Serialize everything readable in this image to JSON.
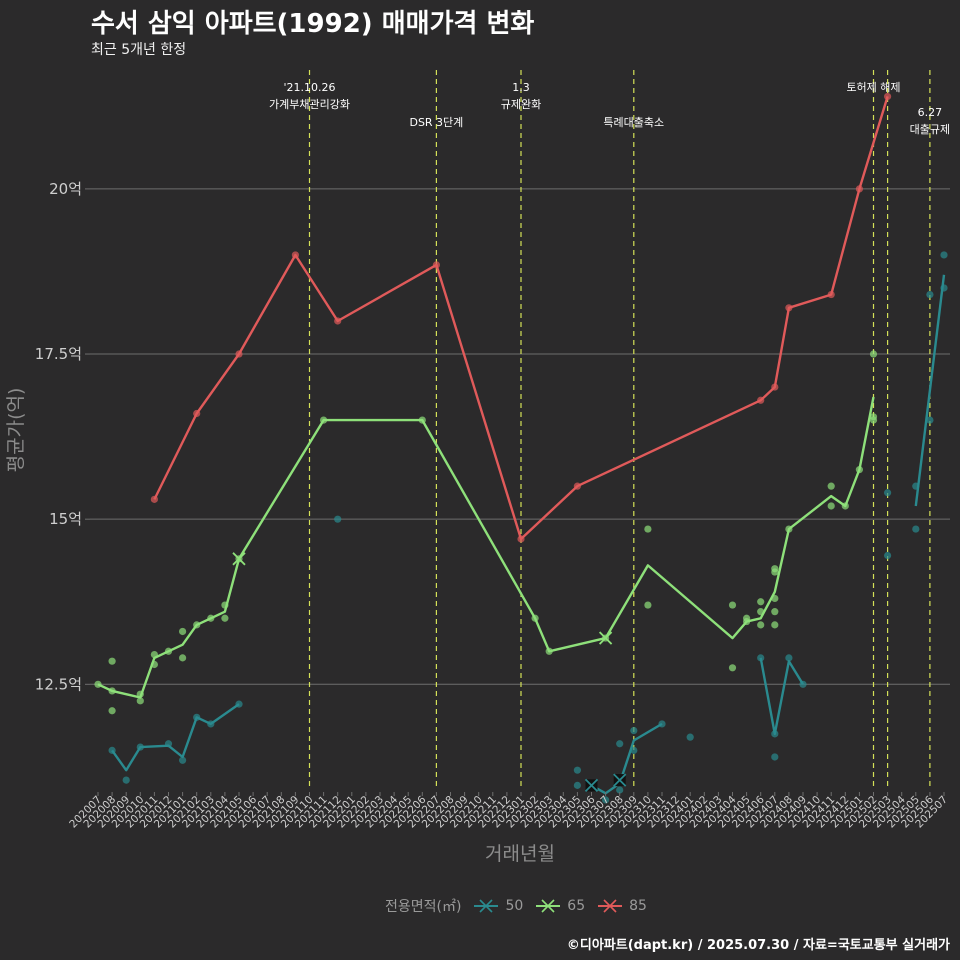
{
  "title": "수서 삼익 아파트(1992) 매매가격 변화",
  "subtitle": "최근 5개년 한정",
  "caption": "©디아파트(dapt.kr) / 2025.07.30 / 자료=국토교통부 실거래가",
  "legend_title": "전용면적(㎡)",
  "colors": {
    "background": "#2b2a2b",
    "grid": "#6e6e6e",
    "event_line": "#d4e157",
    "event_text": "#ffffff",
    "axis_text": "#cfcfcf",
    "axis_title": "#8c8c8c",
    "s50": "#2a8a8f",
    "s65": "#8ee07a",
    "s85": "#e05a5a"
  },
  "chart_data": {
    "type": "line",
    "title": "수서 삼익 아파트(1992) 매매가격 변화",
    "subtitle": "최근 5개년 한정",
    "xlabel": "거래년월",
    "ylabel": "평균가(억)",
    "ylim": [
      10.9,
      21.8
    ],
    "yticks": [
      12.5,
      15,
      17.5,
      20
    ],
    "ytick_labels": [
      "12.5억",
      "15억",
      "17.5억",
      "20억"
    ],
    "grid": "horizontal",
    "legend_position": "bottom",
    "x_labels": [
      "202007",
      "202008",
      "202009",
      "202010",
      "202011",
      "202012",
      "202101",
      "202102",
      "202103",
      "202104",
      "202105",
      "202106",
      "202107",
      "202108",
      "202109",
      "202110",
      "202111",
      "202112",
      "202201",
      "202202",
      "202203",
      "202204",
      "202205",
      "202206",
      "202207",
      "202208",
      "202209",
      "202210",
      "202211",
      "202212",
      "202301",
      "202302",
      "202303",
      "202304",
      "202305",
      "202306",
      "202307",
      "202308",
      "202309",
      "202310",
      "202311",
      "202312",
      "202401",
      "202402",
      "202403",
      "202404",
      "202405",
      "202406",
      "202407",
      "202408",
      "202409",
      "202410",
      "202411",
      "202412",
      "202501",
      "202502",
      "202503",
      "202504",
      "202505",
      "202506",
      "202507"
    ],
    "events": [
      {
        "x": "202110",
        "label": "'21.10.26\n가계부채관리강화",
        "row": 0
      },
      {
        "x": "202207",
        "label": "DSR 3단계",
        "row": 1
      },
      {
        "x": "202301",
        "label": "1.3\n규제완화",
        "row": 0
      },
      {
        "x": "202309",
        "label": "특례대출축소",
        "row": 1
      },
      {
        "x": "202502",
        "label": "토허제 해제",
        "row": 0
      },
      {
        "x": "202503",
        "label": "",
        "row": 0
      },
      {
        "x": "202506",
        "label": "6.27\n대출규제",
        "row": 2
      }
    ],
    "series": [
      {
        "name": "50",
        "line": [
          [
            "202008",
            11.5
          ],
          [
            "202009",
            11.2
          ],
          [
            "202010",
            11.55
          ],
          [
            "202012",
            11.57
          ],
          [
            "202101",
            11.4
          ],
          [
            "202102",
            12.0
          ],
          [
            "202103",
            11.9
          ],
          [
            "202105",
            12.2
          ],
          null,
          [
            "202306",
            10.97
          ],
          [
            "202307",
            10.85
          ],
          [
            "202308",
            11.0
          ],
          [
            "202309",
            11.65
          ],
          [
            "202311",
            11.9
          ],
          null,
          [
            "202406",
            12.9
          ],
          [
            "202407",
            11.75
          ],
          [
            "202408",
            12.85
          ],
          [
            "202409",
            12.5
          ],
          null,
          [
            "202505",
            15.2
          ],
          [
            "202507",
            18.7
          ]
        ],
        "points": [
          [
            "202008",
            11.5
          ],
          [
            "202009",
            11.05
          ],
          [
            "202010",
            11.55
          ],
          [
            "202012",
            11.6
          ],
          [
            "202101",
            11.35
          ],
          [
            "202102",
            12.0
          ],
          [
            "202103",
            11.9
          ],
          [
            "202105",
            12.2
          ],
          [
            "202112",
            15.0
          ],
          [
            "202305",
            11.2
          ],
          [
            "202305",
            10.97
          ],
          [
            "202307",
            10.75
          ],
          [
            "202308",
            10.9
          ],
          [
            "202308",
            11.6
          ],
          [
            "202309",
            11.8
          ],
          [
            "202309",
            11.5
          ],
          [
            "202311",
            11.9
          ],
          [
            "202401",
            11.7
          ],
          [
            "202406",
            12.9
          ],
          [
            "202407",
            11.4
          ],
          [
            "202407",
            11.75
          ],
          [
            "202408",
            12.9
          ],
          [
            "202409",
            12.5
          ],
          [
            "202503",
            14.45
          ],
          [
            "202503",
            15.4
          ],
          [
            "202505",
            14.85
          ],
          [
            "202505",
            15.5
          ],
          [
            "202506",
            16.5
          ],
          [
            "202506",
            18.4
          ],
          [
            "202507",
            19.0
          ],
          [
            "202507",
            18.5
          ]
        ],
        "marks": [
          [
            "202306",
            10.97
          ],
          [
            "202308",
            11.05
          ]
        ]
      },
      {
        "name": "65",
        "line": [
          [
            "202007",
            12.5
          ],
          [
            "202008",
            12.4
          ],
          [
            "202010",
            12.3
          ],
          [
            "202011",
            12.9
          ],
          [
            "202012",
            13.0
          ],
          [
            "202101",
            13.1
          ],
          [
            "202102",
            13.4
          ],
          [
            "202103",
            13.5
          ],
          [
            "202104",
            13.6
          ],
          [
            "202105",
            14.4
          ],
          [
            "202111",
            16.5
          ],
          [
            "202206",
            16.5
          ],
          [
            "202302",
            13.5
          ],
          [
            "202303",
            13.0
          ],
          [
            "202307",
            13.2
          ],
          [
            "202310",
            14.3
          ],
          [
            "202404",
            13.2
          ],
          [
            "202405",
            13.45
          ],
          [
            "202406",
            13.5
          ],
          [
            "202407",
            13.9
          ],
          [
            "202408",
            14.85
          ],
          [
            "202411",
            15.35
          ],
          [
            "202412",
            15.2
          ],
          [
            "202501",
            15.75
          ],
          [
            "202502",
            16.85
          ]
        ],
        "points": [
          [
            "202007",
            12.5
          ],
          [
            "202008",
            12.85
          ],
          [
            "202008",
            12.1
          ],
          [
            "202008",
            12.4
          ],
          [
            "202010",
            12.25
          ],
          [
            "202010",
            12.35
          ],
          [
            "202011",
            12.95
          ],
          [
            "202011",
            12.8
          ],
          [
            "202012",
            13.0
          ],
          [
            "202101",
            12.9
          ],
          [
            "202101",
            13.3
          ],
          [
            "202102",
            13.4
          ],
          [
            "202103",
            13.5
          ],
          [
            "202104",
            13.5
          ],
          [
            "202104",
            13.7
          ],
          [
            "202105",
            14.4
          ],
          [
            "202111",
            16.5
          ],
          [
            "202206",
            16.5
          ],
          [
            "202302",
            13.5
          ],
          [
            "202303",
            13.0
          ],
          [
            "202307",
            13.2
          ],
          [
            "202310",
            14.85
          ],
          [
            "202310",
            13.7
          ],
          [
            "202404",
            13.7
          ],
          [
            "202404",
            12.75
          ],
          [
            "202405",
            13.45
          ],
          [
            "202405",
            13.5
          ],
          [
            "202406",
            13.4
          ],
          [
            "202406",
            13.6
          ],
          [
            "202406",
            13.75
          ],
          [
            "202407",
            14.2
          ],
          [
            "202407",
            14.25
          ],
          [
            "202407",
            13.8
          ],
          [
            "202407",
            13.6
          ],
          [
            "202407",
            13.4
          ],
          [
            "202408",
            14.85
          ],
          [
            "202411",
            15.5
          ],
          [
            "202411",
            15.2
          ],
          [
            "202412",
            15.2
          ],
          [
            "202501",
            15.75
          ],
          [
            "202502",
            16.5
          ],
          [
            "202502",
            17.5
          ],
          [
            "202502",
            16.55
          ]
        ],
        "marks": [
          [
            "202105",
            14.4
          ],
          [
            "202307",
            13.2
          ]
        ]
      },
      {
        "name": "85",
        "line": [
          [
            "202011",
            15.3
          ],
          [
            "202102",
            16.6
          ],
          [
            "202105",
            17.5
          ],
          [
            "202109",
            19.0
          ],
          [
            "202112",
            18.0
          ],
          [
            "202207",
            18.85
          ],
          [
            "202301",
            14.7
          ],
          [
            "202305",
            15.5
          ],
          [
            "202406",
            16.8
          ],
          [
            "202407",
            17.0
          ],
          [
            "202408",
            18.2
          ],
          [
            "202411",
            18.4
          ],
          [
            "202501",
            20.0
          ],
          [
            "202503",
            21.4
          ]
        ],
        "points": [
          [
            "202011",
            15.3
          ],
          [
            "202102",
            16.6
          ],
          [
            "202105",
            17.5
          ],
          [
            "202109",
            19.0
          ],
          [
            "202112",
            18.0
          ],
          [
            "202207",
            18.85
          ],
          [
            "202301",
            14.7
          ],
          [
            "202305",
            15.5
          ],
          [
            "202406",
            16.8
          ],
          [
            "202407",
            17.0
          ],
          [
            "202408",
            18.2
          ],
          [
            "202411",
            18.4
          ],
          [
            "202501",
            20.0
          ],
          [
            "202503",
            21.4
          ]
        ],
        "marks": []
      }
    ]
  }
}
